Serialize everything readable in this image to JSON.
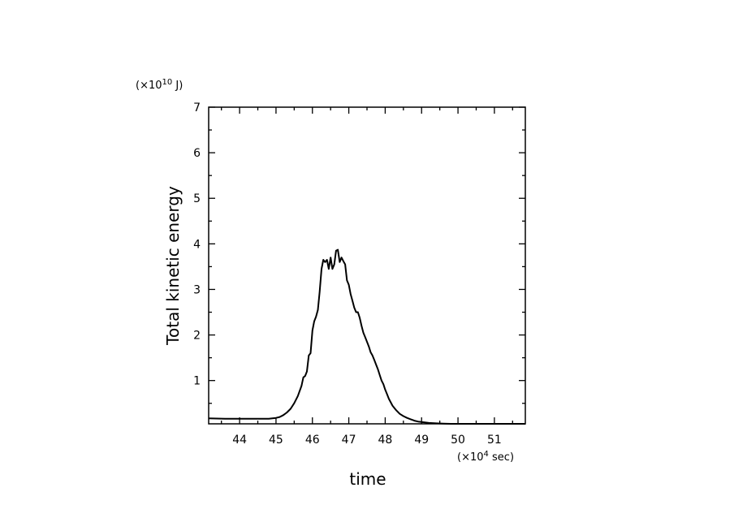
{
  "chart_data": {
    "type": "line",
    "xlabel": "time",
    "ylabel": "Total kinetic energy",
    "x_unit": {
      "prefix": "(×10",
      "exp": "4",
      "suffix": " sec)"
    },
    "y_unit": {
      "prefix": "(×10",
      "exp": "10",
      "suffix": " J)"
    },
    "xlim": [
      43.15,
      51.85
    ],
    "ylim": [
      0.05,
      7.0
    ],
    "x_ticks": [
      44,
      45,
      46,
      47,
      48,
      49,
      50,
      51
    ],
    "y_ticks": [
      1,
      2,
      3,
      4,
      5,
      6,
      7
    ],
    "grid": false,
    "series": [
      {
        "x": [
          43.15,
          43.6,
          44.0,
          44.4,
          44.8,
          45.0,
          45.1,
          45.2,
          45.3,
          45.4,
          45.5,
          45.6,
          45.7,
          45.75,
          45.8,
          45.85,
          45.9,
          45.95,
          46.0,
          46.05,
          46.1,
          46.15,
          46.2,
          46.25,
          46.3,
          46.35,
          46.4,
          46.45,
          46.5,
          46.55,
          46.6,
          46.65,
          46.7,
          46.75,
          46.8,
          46.85,
          46.9,
          46.95,
          47.0,
          47.05,
          47.1,
          47.15,
          47.2,
          47.25,
          47.3,
          47.35,
          47.4,
          47.45,
          47.5,
          47.55,
          47.6,
          47.65,
          47.7,
          47.75,
          47.8,
          47.85,
          47.9,
          47.95,
          48.0,
          48.05,
          48.1,
          48.2,
          48.3,
          48.4,
          48.5,
          48.6,
          48.7,
          48.8,
          48.9,
          49.0,
          49.2,
          49.4,
          49.6,
          49.8,
          50.0,
          50.4,
          50.8,
          51.2,
          51.85
        ],
        "y": [
          0.17,
          0.16,
          0.16,
          0.16,
          0.16,
          0.18,
          0.2,
          0.24,
          0.3,
          0.38,
          0.5,
          0.66,
          0.88,
          1.07,
          1.1,
          1.2,
          1.55,
          1.6,
          2.1,
          2.3,
          2.4,
          2.55,
          2.95,
          3.45,
          3.65,
          3.6,
          3.65,
          3.45,
          3.7,
          3.45,
          3.55,
          3.85,
          3.87,
          3.6,
          3.7,
          3.62,
          3.55,
          3.2,
          3.1,
          2.9,
          2.75,
          2.6,
          2.5,
          2.5,
          2.38,
          2.2,
          2.05,
          1.95,
          1.85,
          1.75,
          1.62,
          1.55,
          1.45,
          1.35,
          1.25,
          1.12,
          1.0,
          0.92,
          0.8,
          0.7,
          0.6,
          0.45,
          0.35,
          0.27,
          0.22,
          0.18,
          0.15,
          0.12,
          0.1,
          0.09,
          0.07,
          0.06,
          0.055,
          0.05,
          0.05,
          0.05,
          0.05,
          0.05,
          0.05
        ]
      }
    ]
  }
}
